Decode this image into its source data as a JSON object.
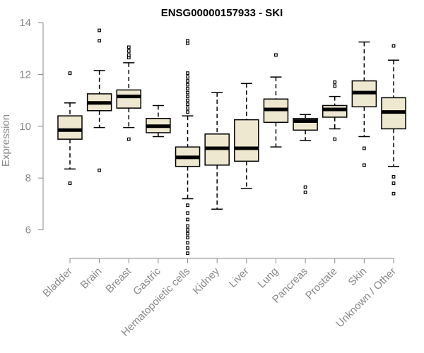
{
  "chart_data": {
    "type": "boxplot",
    "title": "ENSG00000157933 - SKI",
    "ylabel": "Expression",
    "xlabel": "",
    "ylim": [
      5,
      14
    ],
    "yticks": [
      6,
      8,
      10,
      12,
      14
    ],
    "categories": [
      "Bladder",
      "Brain",
      "Breast",
      "Gastric",
      "Hematopoietic cells",
      "Kidney",
      "Liver",
      "Lung",
      "Pancreas",
      "Prostate",
      "Skin",
      "Unknown / Other"
    ],
    "boxes": [
      {
        "category": "Bladder",
        "whisker_low": 8.35,
        "q1": 9.5,
        "median": 9.85,
        "q3": 10.4,
        "whisker_high": 10.9,
        "outliers": [
          12.05,
          7.8
        ]
      },
      {
        "category": "Brain",
        "whisker_low": 9.95,
        "q1": 10.6,
        "median": 10.9,
        "q3": 11.25,
        "whisker_high": 12.15,
        "outliers": [
          13.7,
          13.3,
          8.3
        ]
      },
      {
        "category": "Breast",
        "whisker_low": 9.95,
        "q1": 10.7,
        "median": 11.15,
        "q3": 11.4,
        "whisker_high": 12.45,
        "outliers": [
          13.05,
          12.9,
          12.75,
          12.65,
          9.5
        ]
      },
      {
        "category": "Gastric",
        "whisker_low": 9.6,
        "q1": 9.75,
        "median": 10.0,
        "q3": 10.3,
        "whisker_high": 10.8,
        "outliers": []
      },
      {
        "category": "Hematopoietic cells",
        "whisker_low": 7.2,
        "q1": 8.45,
        "median": 8.8,
        "q3": 9.2,
        "whisker_high": 10.4,
        "outliers": [
          13.3,
          13.2,
          12.05,
          11.9,
          11.75,
          11.6,
          11.45,
          11.3,
          11.15,
          11.0,
          10.85,
          10.7,
          10.55,
          6.95,
          6.65,
          6.4,
          6.15,
          6.0,
          5.85,
          5.7,
          5.5,
          5.3,
          5.1
        ]
      },
      {
        "category": "Kidney",
        "whisker_low": 6.8,
        "q1": 8.5,
        "median": 9.15,
        "q3": 9.7,
        "whisker_high": 11.3,
        "outliers": []
      },
      {
        "category": "Liver",
        "whisker_low": 7.6,
        "q1": 8.65,
        "median": 9.15,
        "q3": 10.25,
        "whisker_high": 11.65,
        "outliers": []
      },
      {
        "category": "Lung",
        "whisker_low": 9.2,
        "q1": 10.15,
        "median": 10.65,
        "q3": 11.05,
        "whisker_high": 11.9,
        "outliers": [
          12.75
        ]
      },
      {
        "category": "Pancreas",
        "whisker_low": 9.45,
        "q1": 9.85,
        "median": 10.2,
        "q3": 10.3,
        "whisker_high": 10.45,
        "outliers": [
          7.65,
          7.45
        ]
      },
      {
        "category": "Prostate",
        "whisker_low": 9.9,
        "q1": 10.35,
        "median": 10.65,
        "q3": 10.8,
        "whisker_high": 11.15,
        "outliers": [
          11.7,
          11.55,
          9.5
        ]
      },
      {
        "category": "Skin",
        "whisker_low": 9.6,
        "q1": 10.75,
        "median": 11.3,
        "q3": 11.75,
        "whisker_high": 13.25,
        "outliers": [
          9.15,
          8.5
        ]
      },
      {
        "category": "Unknown / Other",
        "whisker_low": 8.45,
        "q1": 9.9,
        "median": 10.55,
        "q3": 11.1,
        "whisker_high": 12.55,
        "outliers": [
          13.1,
          8.05,
          7.8,
          7.4
        ]
      }
    ]
  }
}
